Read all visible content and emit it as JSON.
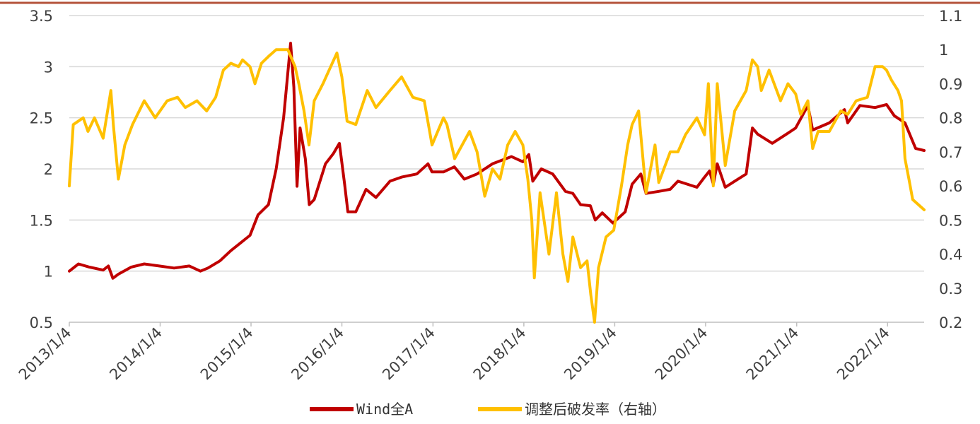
{
  "chart_data": {
    "type": "line",
    "x_axis": {
      "tick_labels": [
        "2013/1/4",
        "2014/1/4",
        "2015/1/4",
        "2016/1/4",
        "2017/1/4",
        "2018/1/4",
        "2019/1/4",
        "2020/1/4",
        "2021/1/4",
        "2022/1/4"
      ],
      "range": [
        "2013-01-04",
        "2022-05-31"
      ]
    },
    "y_left": {
      "range": [
        0.5,
        3.5
      ],
      "ticks": [
        "0.5",
        "1",
        "1.5",
        "2",
        "2.5",
        "3",
        "3.5"
      ]
    },
    "y_right": {
      "range": [
        0.2,
        1.1
      ],
      "ticks": [
        "0.2",
        "0.3",
        "0.4",
        "0.5",
        "0.6",
        "0.7",
        "0.8",
        "0.9",
        "1",
        "1.1"
      ]
    },
    "grid": "horizontal",
    "legend_position": "bottom",
    "series": [
      {
        "name": "Wind全A",
        "axis": "left",
        "color": "#C00000",
        "points": [
          [
            "2013-01-04",
            1.0
          ],
          [
            "2013-02-10",
            1.07
          ],
          [
            "2013-03-25",
            1.04
          ],
          [
            "2013-05-20",
            1.01
          ],
          [
            "2013-06-10",
            1.05
          ],
          [
            "2013-06-28",
            0.93
          ],
          [
            "2013-07-20",
            0.97
          ],
          [
            "2013-09-10",
            1.04
          ],
          [
            "2013-11-01",
            1.07
          ],
          [
            "2013-12-31",
            1.05
          ],
          [
            "2014-03-01",
            1.03
          ],
          [
            "2014-05-01",
            1.05
          ],
          [
            "2014-06-15",
            1.0
          ],
          [
            "2014-07-15",
            1.03
          ],
          [
            "2014-09-01",
            1.1
          ],
          [
            "2014-10-15",
            1.2
          ],
          [
            "2014-11-20",
            1.27
          ],
          [
            "2014-12-31",
            1.35
          ],
          [
            "2015-02-01",
            1.55
          ],
          [
            "2015-03-15",
            1.65
          ],
          [
            "2015-04-15",
            2.0
          ],
          [
            "2015-05-15",
            2.5
          ],
          [
            "2015-06-12",
            3.23
          ],
          [
            "2015-06-25",
            2.8
          ],
          [
            "2015-07-08",
            1.83
          ],
          [
            "2015-07-20",
            2.4
          ],
          [
            "2015-08-10",
            2.1
          ],
          [
            "2015-08-26",
            1.65
          ],
          [
            "2015-09-15",
            1.7
          ],
          [
            "2015-10-30",
            2.05
          ],
          [
            "2015-12-01",
            2.15
          ],
          [
            "2015-12-25",
            2.25
          ],
          [
            "2016-01-15",
            1.85
          ],
          [
            "2016-01-28",
            1.58
          ],
          [
            "2016-02-29",
            1.58
          ],
          [
            "2016-04-10",
            1.8
          ],
          [
            "2016-05-20",
            1.72
          ],
          [
            "2016-07-15",
            1.88
          ],
          [
            "2016-08-31",
            1.92
          ],
          [
            "2016-10-31",
            1.95
          ],
          [
            "2016-12-15",
            2.05
          ],
          [
            "2016-12-31",
            1.97
          ],
          [
            "2017-02-15",
            1.97
          ],
          [
            "2017-03-31",
            2.02
          ],
          [
            "2017-05-10",
            1.9
          ],
          [
            "2017-06-30",
            1.95
          ],
          [
            "2017-08-31",
            2.05
          ],
          [
            "2017-11-15",
            2.12
          ],
          [
            "2017-12-31",
            2.07
          ],
          [
            "2018-01-24",
            2.14
          ],
          [
            "2018-02-09",
            1.88
          ],
          [
            "2018-03-15",
            2.0
          ],
          [
            "2018-04-30",
            1.95
          ],
          [
            "2018-06-20",
            1.78
          ],
          [
            "2018-07-20",
            1.76
          ],
          [
            "2018-08-20",
            1.65
          ],
          [
            "2018-09-28",
            1.64
          ],
          [
            "2018-10-18",
            1.5
          ],
          [
            "2018-11-15",
            1.57
          ],
          [
            "2018-12-28",
            1.47
          ],
          [
            "2019-02-15",
            1.58
          ],
          [
            "2019-03-15",
            1.85
          ],
          [
            "2019-04-19",
            1.95
          ],
          [
            "2019-05-10",
            1.76
          ],
          [
            "2019-06-30",
            1.78
          ],
          [
            "2019-08-15",
            1.8
          ],
          [
            "2019-09-15",
            1.88
          ],
          [
            "2019-11-30",
            1.82
          ],
          [
            "2019-12-31",
            1.92
          ],
          [
            "2020-01-20",
            1.98
          ],
          [
            "2020-02-04",
            1.85
          ],
          [
            "2020-02-20",
            2.05
          ],
          [
            "2020-03-23",
            1.82
          ],
          [
            "2020-04-30",
            1.88
          ],
          [
            "2020-06-15",
            1.95
          ],
          [
            "2020-07-10",
            2.4
          ],
          [
            "2020-07-31",
            2.34
          ],
          [
            "2020-09-28",
            2.25
          ],
          [
            "2020-11-30",
            2.35
          ],
          [
            "2020-12-31",
            2.4
          ],
          [
            "2021-02-18",
            2.62
          ],
          [
            "2021-03-09",
            2.38
          ],
          [
            "2021-05-15",
            2.45
          ],
          [
            "2021-07-15",
            2.58
          ],
          [
            "2021-07-28",
            2.45
          ],
          [
            "2021-09-15",
            2.62
          ],
          [
            "2021-11-15",
            2.6
          ],
          [
            "2021-12-31",
            2.63
          ],
          [
            "2022-01-31",
            2.52
          ],
          [
            "2022-03-15",
            2.45
          ],
          [
            "2022-04-27",
            2.2
          ],
          [
            "2022-05-31",
            2.18
          ]
        ]
      },
      {
        "name": "调整后破发率（右轴）",
        "axis": "right",
        "color": "#FFC000",
        "points": [
          [
            "2013-01-04",
            0.6
          ],
          [
            "2013-01-20",
            0.78
          ],
          [
            "2013-03-01",
            0.8
          ],
          [
            "2013-03-20",
            0.76
          ],
          [
            "2013-04-15",
            0.8
          ],
          [
            "2013-05-20",
            0.74
          ],
          [
            "2013-06-20",
            0.88
          ],
          [
            "2013-06-30",
            0.78
          ],
          [
            "2013-07-20",
            0.62
          ],
          [
            "2013-08-15",
            0.72
          ],
          [
            "2013-09-15",
            0.78
          ],
          [
            "2013-11-01",
            0.85
          ],
          [
            "2013-12-15",
            0.8
          ],
          [
            "2014-02-01",
            0.85
          ],
          [
            "2014-03-15",
            0.86
          ],
          [
            "2014-04-15",
            0.83
          ],
          [
            "2014-06-01",
            0.85
          ],
          [
            "2014-07-10",
            0.82
          ],
          [
            "2014-08-15",
            0.86
          ],
          [
            "2014-09-15",
            0.94
          ],
          [
            "2014-10-15",
            0.96
          ],
          [
            "2014-11-15",
            0.95
          ],
          [
            "2014-12-01",
            0.97
          ],
          [
            "2014-12-31",
            0.95
          ],
          [
            "2015-01-20",
            0.9
          ],
          [
            "2015-02-15",
            0.96
          ],
          [
            "2015-03-15",
            0.98
          ],
          [
            "2015-04-15",
            1.0
          ],
          [
            "2015-06-01",
            1.0
          ],
          [
            "2015-06-30",
            0.95
          ],
          [
            "2015-07-15",
            0.9
          ],
          [
            "2015-08-05",
            0.82
          ],
          [
            "2015-08-25",
            0.72
          ],
          [
            "2015-09-15",
            0.85
          ],
          [
            "2015-10-20",
            0.9
          ],
          [
            "2015-11-20",
            0.95
          ],
          [
            "2015-12-15",
            0.99
          ],
          [
            "2016-01-04",
            0.92
          ],
          [
            "2016-01-25",
            0.79
          ],
          [
            "2016-02-29",
            0.78
          ],
          [
            "2016-04-15",
            0.88
          ],
          [
            "2016-05-20",
            0.83
          ],
          [
            "2016-07-15",
            0.88
          ],
          [
            "2016-08-31",
            0.92
          ],
          [
            "2016-10-15",
            0.86
          ],
          [
            "2016-11-30",
            0.85
          ],
          [
            "2016-12-31",
            0.72
          ],
          [
            "2017-02-15",
            0.8
          ],
          [
            "2017-03-01",
            0.78
          ],
          [
            "2017-04-01",
            0.68
          ],
          [
            "2017-05-31",
            0.76
          ],
          [
            "2017-06-30",
            0.7
          ],
          [
            "2017-07-31",
            0.57
          ],
          [
            "2017-08-31",
            0.65
          ],
          [
            "2017-09-30",
            0.62
          ],
          [
            "2017-10-31",
            0.72
          ],
          [
            "2017-11-30",
            0.76
          ],
          [
            "2017-12-31",
            0.72
          ],
          [
            "2018-01-20",
            0.62
          ],
          [
            "2018-02-05",
            0.5
          ],
          [
            "2018-02-15",
            0.33
          ],
          [
            "2018-03-10",
            0.58
          ],
          [
            "2018-04-15",
            0.4
          ],
          [
            "2018-05-15",
            0.58
          ],
          [
            "2018-06-10",
            0.4
          ],
          [
            "2018-06-30",
            0.32
          ],
          [
            "2018-07-20",
            0.45
          ],
          [
            "2018-08-20",
            0.36
          ],
          [
            "2018-09-15",
            0.38
          ],
          [
            "2018-09-30",
            0.28
          ],
          [
            "2018-10-15",
            0.2
          ],
          [
            "2018-10-31",
            0.36
          ],
          [
            "2018-11-30",
            0.45
          ],
          [
            "2018-12-31",
            0.47
          ],
          [
            "2019-01-31",
            0.6
          ],
          [
            "2019-02-25",
            0.72
          ],
          [
            "2019-03-15",
            0.78
          ],
          [
            "2019-04-10",
            0.82
          ],
          [
            "2019-05-10",
            0.58
          ],
          [
            "2019-06-15",
            0.72
          ],
          [
            "2019-06-30",
            0.61
          ],
          [
            "2019-08-15",
            0.7
          ],
          [
            "2019-09-15",
            0.7
          ],
          [
            "2019-10-15",
            0.75
          ],
          [
            "2019-11-30",
            0.8
          ],
          [
            "2019-12-31",
            0.75
          ],
          [
            "2020-01-15",
            0.9
          ],
          [
            "2020-02-04",
            0.6
          ],
          [
            "2020-02-20",
            0.9
          ],
          [
            "2020-03-23",
            0.66
          ],
          [
            "2020-04-30",
            0.82
          ],
          [
            "2020-06-15",
            0.88
          ],
          [
            "2020-07-10",
            0.97
          ],
          [
            "2020-07-31",
            0.95
          ],
          [
            "2020-08-15",
            0.88
          ],
          [
            "2020-09-15",
            0.94
          ],
          [
            "2020-10-31",
            0.85
          ],
          [
            "2020-11-30",
            0.9
          ],
          [
            "2020-12-31",
            0.87
          ],
          [
            "2021-01-20",
            0.81
          ],
          [
            "2021-02-18",
            0.85
          ],
          [
            "2021-03-09",
            0.71
          ],
          [
            "2021-03-31",
            0.76
          ],
          [
            "2021-05-15",
            0.76
          ],
          [
            "2021-06-30",
            0.82
          ],
          [
            "2021-07-28",
            0.81
          ],
          [
            "2021-08-31",
            0.85
          ],
          [
            "2021-10-15",
            0.86
          ],
          [
            "2021-11-15",
            0.95
          ],
          [
            "2021-12-15",
            0.95
          ],
          [
            "2021-12-31",
            0.94
          ],
          [
            "2022-01-20",
            0.91
          ],
          [
            "2022-02-15",
            0.88
          ],
          [
            "2022-03-01",
            0.85
          ],
          [
            "2022-03-15",
            0.68
          ],
          [
            "2022-03-31",
            0.62
          ],
          [
            "2022-04-15",
            0.56
          ],
          [
            "2022-05-31",
            0.53
          ]
        ]
      }
    ]
  }
}
